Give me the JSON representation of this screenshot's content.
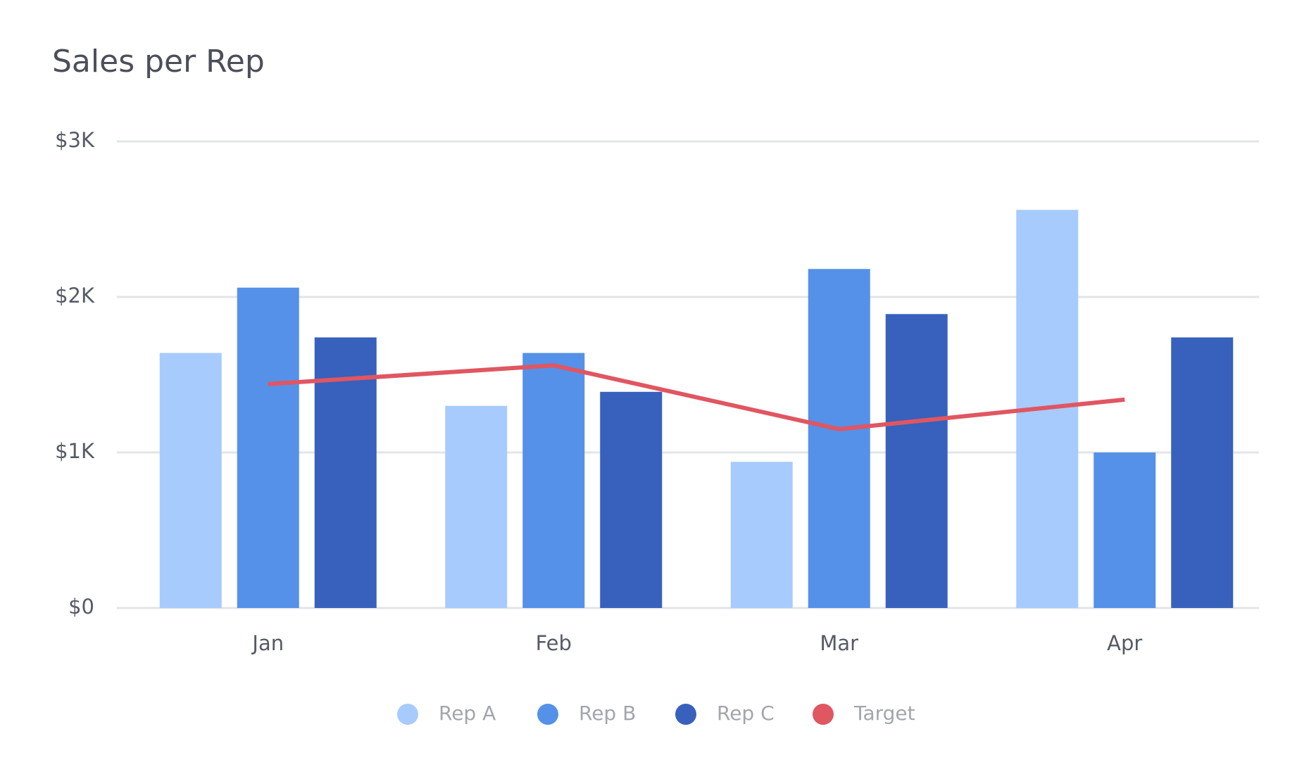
{
  "chart_data": {
    "type": "bar",
    "title": "Sales per Rep",
    "categories": [
      "Jan",
      "Feb",
      "Mar",
      "Apr"
    ],
    "series": [
      {
        "name": "Rep A",
        "color": "#a8cbfd",
        "values": [
          1640,
          1300,
          940,
          2560
        ]
      },
      {
        "name": "Rep B",
        "color": "#5591e8",
        "values": [
          2060,
          1640,
          2180,
          1000
        ]
      },
      {
        "name": "Rep C",
        "color": "#3761bc",
        "values": [
          1740,
          1390,
          1890,
          1740
        ]
      },
      {
        "name": "Target",
        "type": "line",
        "color": "#e05661",
        "values": [
          1440,
          1560,
          1150,
          1340
        ]
      }
    ],
    "ylim": [
      0,
      3000
    ],
    "yticks": [
      {
        "value": 0,
        "label": "$0"
      },
      {
        "value": 1000,
        "label": "$1K"
      },
      {
        "value": 2000,
        "label": "$2K"
      },
      {
        "value": 3000,
        "label": "$3K"
      }
    ],
    "grid": true,
    "legend": "bottom"
  }
}
